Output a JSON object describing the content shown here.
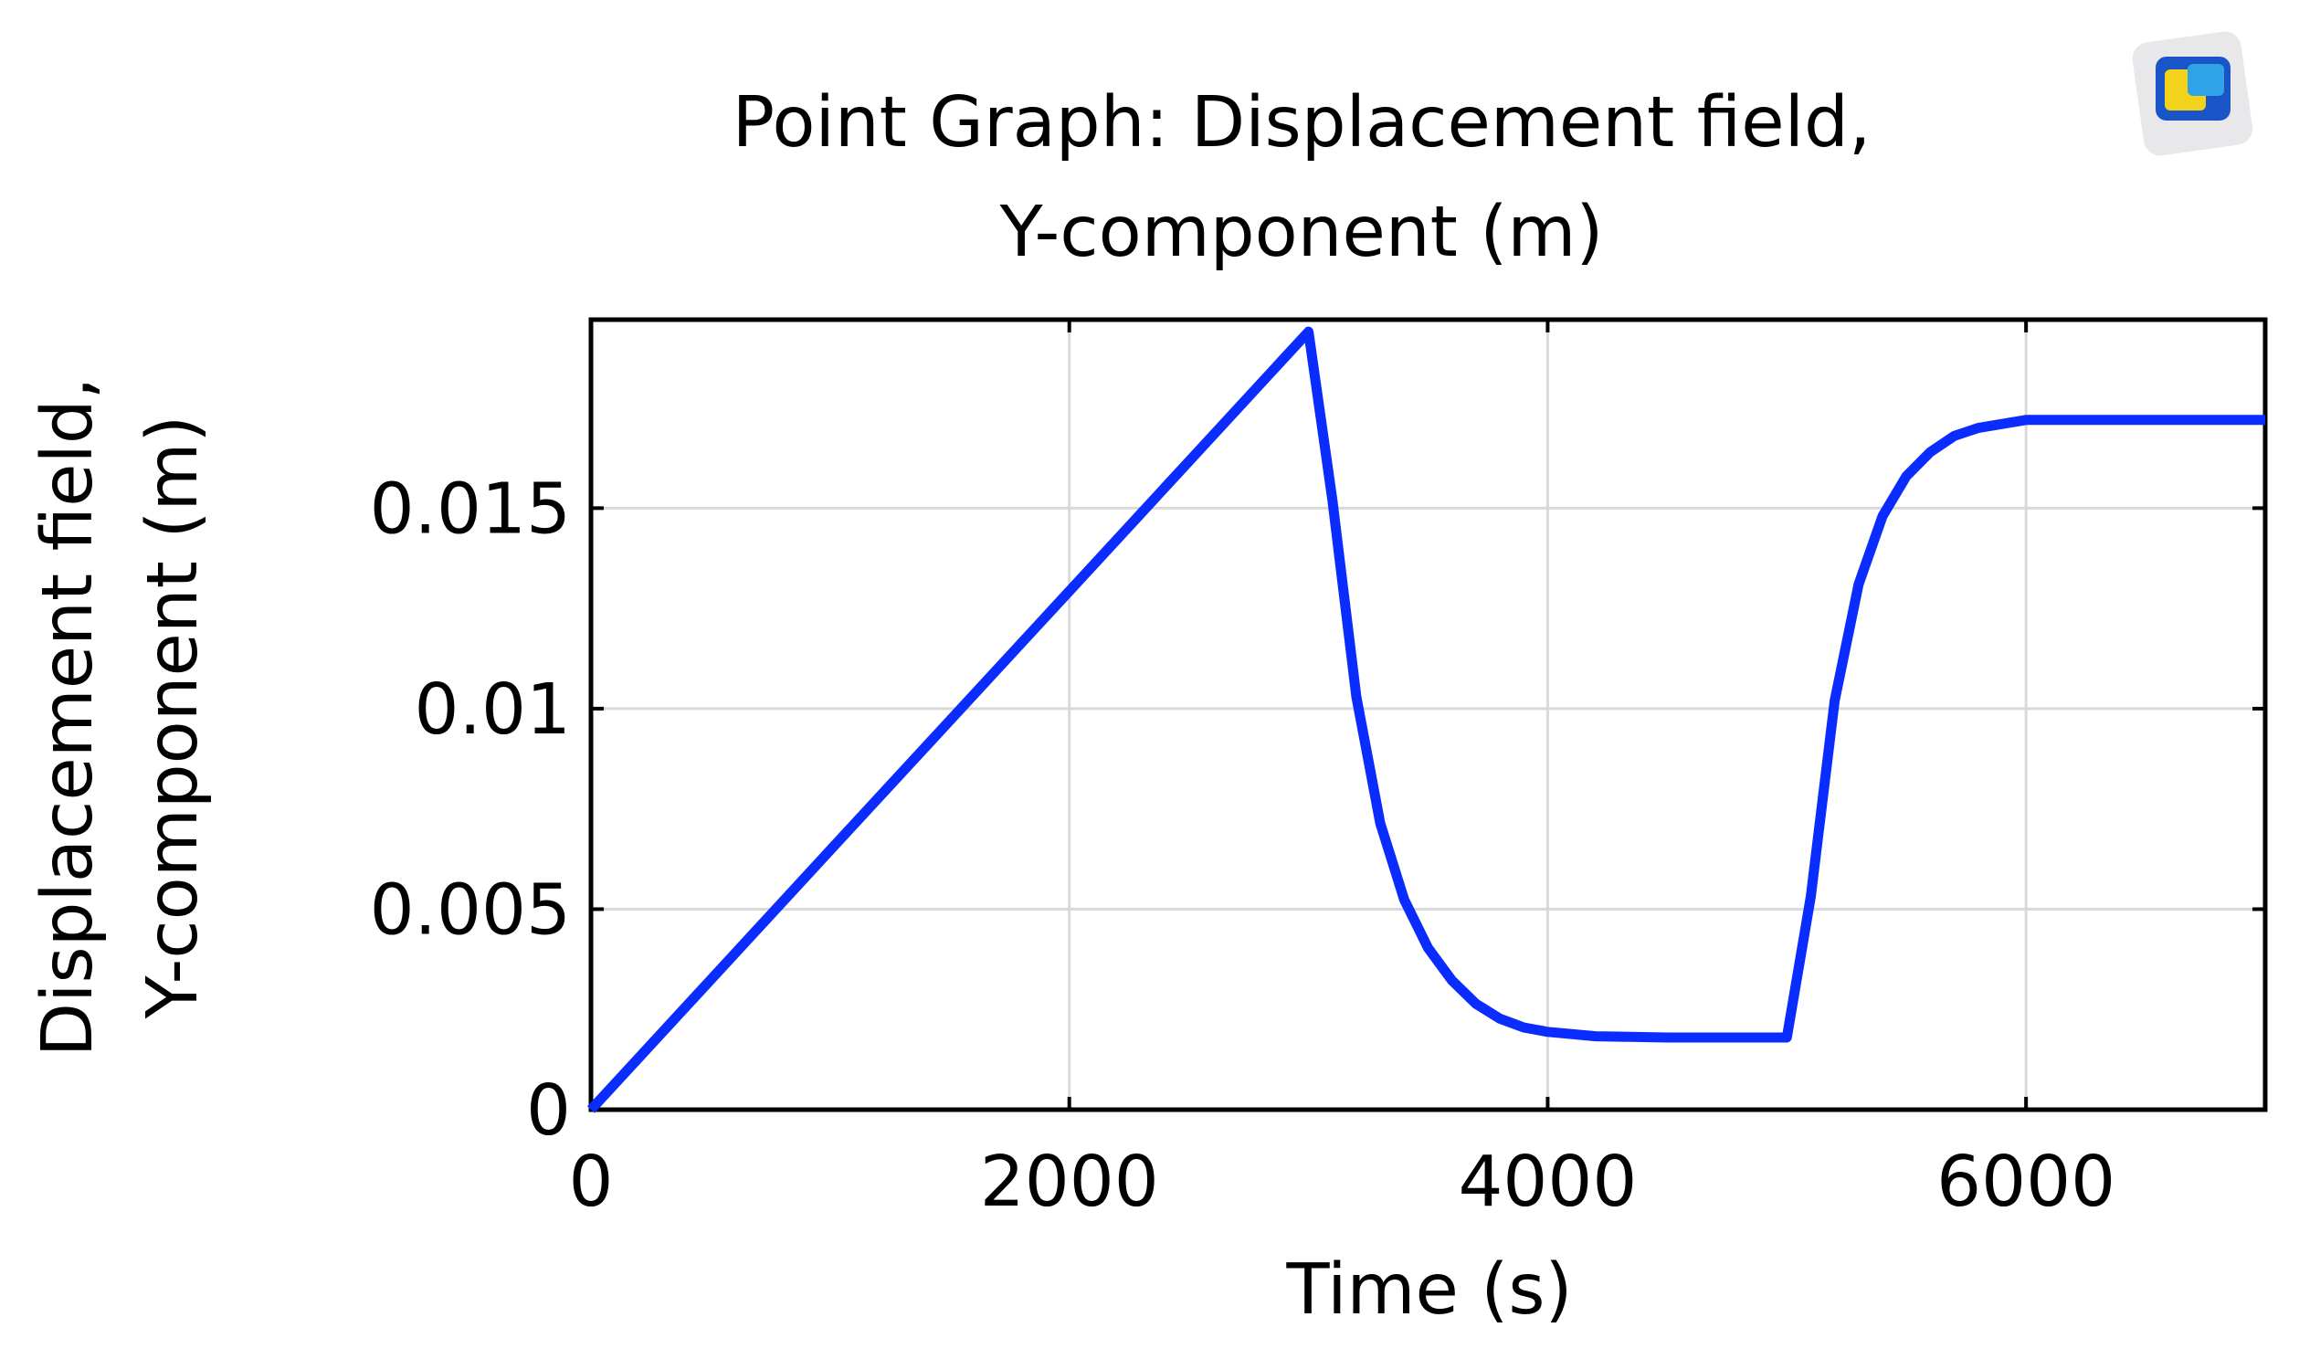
{
  "chart_data": {
    "type": "line",
    "title": [
      "Point Graph: Displacement field,",
      "Y-component (m)"
    ],
    "xlabel": "Time (s)",
    "ylabel": [
      "Displacement field,",
      "Y-component (m)"
    ],
    "x": [
      0,
      1000,
      2000,
      3000,
      3100,
      3200,
      3300,
      3400,
      3500,
      3600,
      3700,
      3800,
      3900,
      4000,
      4200,
      4500,
      5000,
      5100,
      5200,
      5300,
      5400,
      5500,
      5600,
      5700,
      5800,
      5900,
      6000,
      7000
    ],
    "series": [
      {
        "color": "#0a2cff",
        "values": [
          0,
          0.00647,
          0.01293,
          0.0194,
          0.0152,
          0.0103,
          0.00714,
          0.00524,
          0.00403,
          0.00322,
          0.00264,
          0.00227,
          0.00205,
          0.00194,
          0.00183,
          0.0018,
          0.0018,
          0.00531,
          0.0102,
          0.0131,
          0.0148,
          0.0158,
          0.0164,
          0.0168,
          0.017,
          0.0171,
          0.0172,
          0.0172
        ]
      }
    ],
    "xlim": [
      0,
      7000
    ],
    "xticks": [
      0,
      2000,
      4000,
      6000
    ],
    "ylim": [
      0,
      0.0197
    ],
    "yticks": [
      0,
      0.005,
      0.01,
      0.015
    ],
    "grid": true
  }
}
